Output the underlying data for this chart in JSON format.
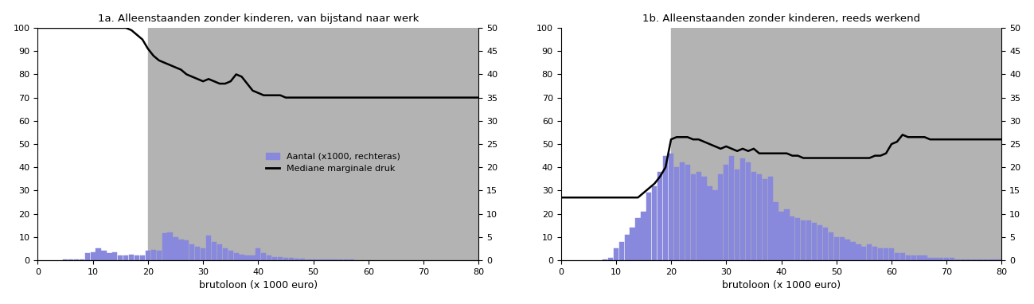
{
  "title_a": "1a. Alleenstaanden zonder kinderen, van bijstand naar werk",
  "title_b": "1b. Alleenstaanden zonder kinderen, reeds werkend",
  "xlabel": "brutoloon (x 1000 euro)",
  "legend_bar": "Aantal (x1000, rechteras)",
  "legend_line": "Mediane marginale druk",
  "xlim": [
    0,
    80
  ],
  "ylim_left": [
    0,
    100
  ],
  "ylim_right": [
    0,
    50
  ],
  "xticks": [
    0,
    10,
    20,
    30,
    40,
    50,
    60,
    70,
    80
  ],
  "yticks_left": [
    0,
    10,
    20,
    30,
    40,
    50,
    60,
    70,
    80,
    90,
    100
  ],
  "yticks_right": [
    0,
    5,
    10,
    15,
    20,
    25,
    30,
    35,
    40,
    45,
    50
  ],
  "gray_shade_start_a": 20,
  "gray_shade_start_b": 20,
  "bar_color": "#8888dd",
  "gray_color": "#b3b3b3",
  "line_color": "#000000",
  "background_color": "#ffffff",
  "bar_width": 0.9,
  "bars_a_x": [
    5,
    6,
    7,
    8,
    9,
    10,
    11,
    12,
    13,
    14,
    15,
    16,
    17,
    18,
    19,
    20,
    21,
    22,
    23,
    24,
    25,
    26,
    27,
    28,
    29,
    30,
    31,
    32,
    33,
    34,
    35,
    36,
    37,
    38,
    39,
    40,
    41,
    42,
    43,
    44,
    45,
    46,
    47,
    48,
    49,
    50,
    51,
    52,
    53,
    54,
    55,
    56,
    57,
    58,
    59,
    60
  ],
  "bars_a_y": [
    0.3,
    0.4,
    0.4,
    0.5,
    3.0,
    3.5,
    5.0,
    4.0,
    3.0,
    3.5,
    2.0,
    2.0,
    2.5,
    2.0,
    2.0,
    4.0,
    4.5,
    4.0,
    11.5,
    12.0,
    10.0,
    9.0,
    8.5,
    7.0,
    6.0,
    5.0,
    10.5,
    8.0,
    7.0,
    5.0,
    4.0,
    3.0,
    2.5,
    2.0,
    2.0,
    5.0,
    3.0,
    2.0,
    1.5,
    1.5,
    1.0,
    1.0,
    0.8,
    0.8,
    0.5,
    0.5,
    0.5,
    0.5,
    0.5,
    0.3,
    0.3,
    0.2,
    0.2,
    0.1,
    0.1,
    0.1
  ],
  "line_a_x": [
    0,
    1,
    2,
    3,
    4,
    5,
    6,
    7,
    8,
    9,
    10,
    11,
    12,
    13,
    14,
    15,
    16,
    17,
    18,
    19,
    20,
    21,
    22,
    23,
    24,
    25,
    26,
    27,
    28,
    29,
    30,
    31,
    32,
    33,
    34,
    35,
    36,
    37,
    38,
    39,
    40,
    41,
    42,
    43,
    44,
    45,
    46,
    47,
    48,
    49,
    50,
    51,
    52,
    53,
    54,
    55,
    56,
    57,
    58,
    59,
    60,
    61,
    62,
    63,
    64,
    65,
    66,
    67,
    68,
    69,
    70,
    71,
    72,
    73,
    74,
    75,
    76,
    77,
    78,
    79,
    80
  ],
  "line_a_y": [
    100,
    100,
    100,
    100,
    100,
    100,
    100,
    100,
    100,
    100,
    100,
    100,
    100,
    100,
    100,
    100,
    100,
    99,
    97,
    95,
    91,
    88,
    86,
    85,
    84,
    83,
    82,
    80,
    79,
    78,
    77,
    78,
    77,
    76,
    76,
    77,
    80,
    79,
    76,
    73,
    72,
    71,
    71,
    71,
    71,
    70,
    70,
    70,
    70,
    70,
    70,
    70,
    70,
    70,
    70,
    70,
    70,
    70,
    70,
    70,
    70,
    70,
    70,
    70,
    70,
    70,
    70,
    70,
    70,
    70,
    70,
    70,
    70,
    70,
    70,
    70,
    70,
    70,
    70,
    70,
    70
  ],
  "bars_b_x": [
    8,
    9,
    10,
    11,
    12,
    13,
    14,
    15,
    16,
    17,
    18,
    19,
    20,
    21,
    22,
    23,
    24,
    25,
    26,
    27,
    28,
    29,
    30,
    31,
    32,
    33,
    34,
    35,
    36,
    37,
    38,
    39,
    40,
    41,
    42,
    43,
    44,
    45,
    46,
    47,
    48,
    49,
    50,
    51,
    52,
    53,
    54,
    55,
    56,
    57,
    58,
    59,
    60,
    61,
    62,
    63,
    64,
    65,
    66,
    67,
    68,
    69,
    70,
    71,
    72,
    73,
    74,
    75,
    76,
    77,
    78,
    79,
    80
  ],
  "bars_b_y": [
    0.5,
    1.0,
    5.0,
    8.0,
    11.0,
    14.0,
    18.0,
    21.0,
    29.0,
    32.0,
    38.0,
    45.0,
    46.0,
    40.0,
    42.0,
    41.0,
    37.0,
    38.0,
    36.0,
    32.0,
    30.0,
    37.0,
    41.0,
    45.0,
    39.0,
    44.0,
    42.0,
    38.0,
    37.0,
    35.0,
    36.0,
    25.0,
    21.0,
    22.0,
    19.0,
    18.0,
    17.0,
    17.0,
    16.0,
    15.0,
    14.0,
    12.0,
    10.0,
    10.0,
    9.0,
    8.0,
    7.0,
    6.0,
    7.0,
    6.0,
    5.0,
    5.0,
    5.0,
    3.0,
    3.0,
    2.0,
    2.0,
    2.0,
    2.0,
    1.0,
    1.0,
    1.0,
    1.0,
    1.0,
    0.5,
    0.5,
    0.5,
    0.5,
    0.3,
    0.3,
    0.2,
    0.2,
    0.2
  ],
  "line_b_x": [
    0,
    1,
    2,
    3,
    4,
    5,
    6,
    7,
    8,
    9,
    10,
    11,
    12,
    13,
    14,
    15,
    16,
    17,
    18,
    19,
    20,
    21,
    22,
    23,
    24,
    25,
    26,
    27,
    28,
    29,
    30,
    31,
    32,
    33,
    34,
    35,
    36,
    37,
    38,
    39,
    40,
    41,
    42,
    43,
    44,
    45,
    46,
    47,
    48,
    49,
    50,
    51,
    52,
    53,
    54,
    55,
    56,
    57,
    58,
    59,
    60,
    61,
    62,
    63,
    64,
    65,
    66,
    67,
    68,
    69,
    70,
    71,
    72,
    73,
    74,
    75,
    76,
    77,
    78,
    79,
    80
  ],
  "line_b_y": [
    27,
    27,
    27,
    27,
    27,
    27,
    27,
    27,
    27,
    27,
    27,
    27,
    27,
    27,
    27,
    29,
    31,
    33,
    36,
    40,
    52,
    53,
    53,
    53,
    52,
    52,
    51,
    50,
    49,
    48,
    49,
    48,
    47,
    48,
    47,
    48,
    46,
    46,
    46,
    46,
    46,
    46,
    45,
    45,
    44,
    44,
    44,
    44,
    44,
    44,
    44,
    44,
    44,
    44,
    44,
    44,
    44,
    45,
    45,
    46,
    50,
    51,
    54,
    53,
    53,
    53,
    53,
    52,
    52,
    52,
    52,
    52,
    52,
    52,
    52,
    52,
    52,
    52,
    52,
    52,
    52
  ]
}
